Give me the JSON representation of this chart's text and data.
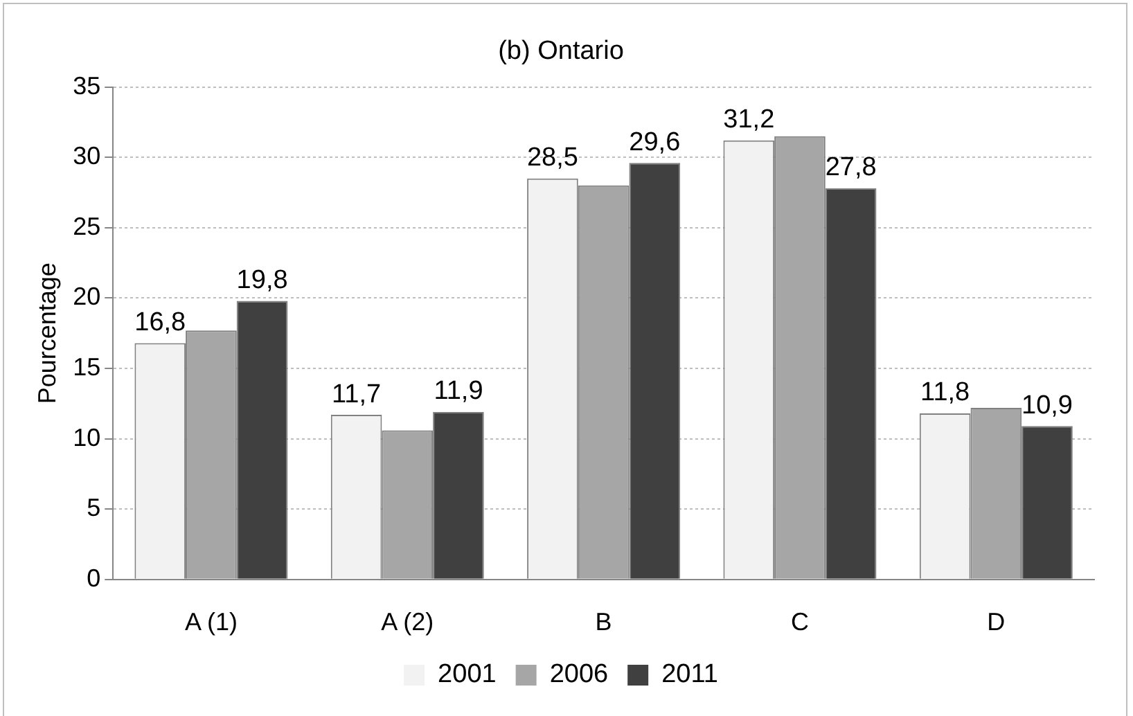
{
  "chart_data": {
    "type": "bar",
    "title": "(b) Ontario",
    "ylabel": "Pourcentage",
    "categories": [
      "A (1)",
      "A (2)",
      "B",
      "C",
      "D"
    ],
    "series": [
      {
        "name": "2001",
        "color": "#f2f2f2",
        "values": [
          16.8,
          11.7,
          28.5,
          31.2,
          11.8
        ],
        "value_labels": [
          "16,8",
          "11,7",
          "28,5",
          "31,2",
          "11,8"
        ]
      },
      {
        "name": "2006",
        "color": "#a6a6a6",
        "values": [
          17.7,
          10.6,
          28.0,
          31.5,
          12.2
        ]
      },
      {
        "name": "2011",
        "color": "#404040",
        "values": [
          19.8,
          11.9,
          29.6,
          27.8,
          10.9
        ],
        "value_labels": [
          "19,8",
          "11,9",
          "29,6",
          "27,8",
          "10,9"
        ]
      }
    ],
    "ylim": [
      0,
      35
    ],
    "yticks": [
      0,
      5,
      10,
      15,
      20,
      25,
      30,
      35
    ],
    "grid": "y",
    "legend": "bottom"
  }
}
